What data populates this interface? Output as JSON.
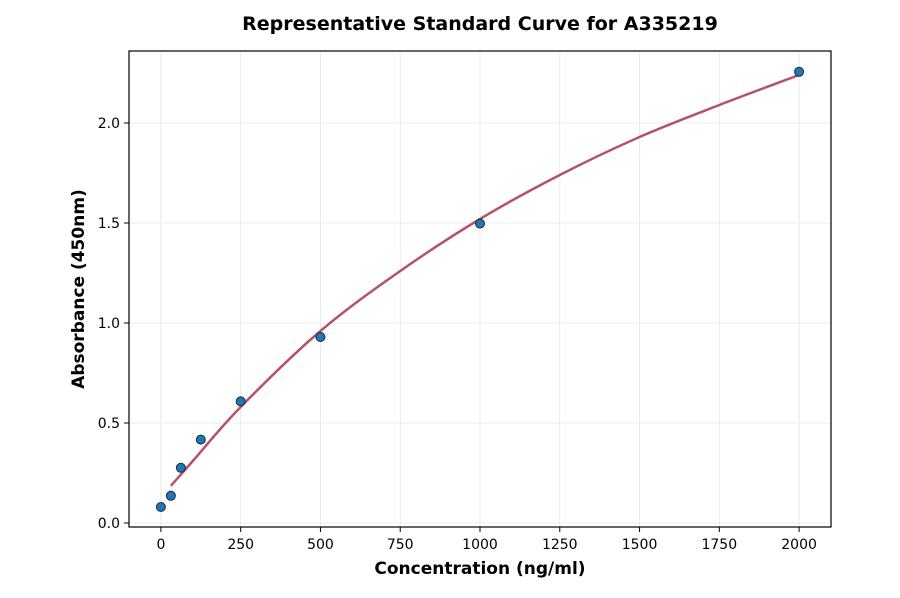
{
  "chart_data": {
    "type": "scatter",
    "title": "Representative Standard Curve for A335219",
    "xlabel": "Concentration (ng/ml)",
    "ylabel": "Absorbance (450nm)",
    "xlim": [
      -100,
      2100
    ],
    "ylim": [
      -0.02,
      2.36
    ],
    "xticks": [
      0,
      250,
      500,
      750,
      1000,
      1250,
      1500,
      1750,
      2000
    ],
    "yticks": [
      0.0,
      0.5,
      1.0,
      1.5,
      2.0
    ],
    "ytick_labels": [
      "0.0",
      "0.5",
      "1.0",
      "1.5",
      "2.0"
    ],
    "grid": true,
    "series": [
      {
        "type": "scatter",
        "x": [
          0,
          31.25,
          62.5,
          125,
          250,
          500,
          1000,
          2000
        ],
        "y": [
          0.08,
          0.136,
          0.276,
          0.417,
          0.608,
          0.93,
          1.497,
          2.256
        ],
        "color": "#1f77b4"
      },
      {
        "type": "line",
        "x": [
          31.25,
          100,
          250,
          500,
          750,
          1000,
          1250,
          1500,
          1750,
          2000
        ],
        "y": [
          0.186,
          0.31,
          0.58,
          0.96,
          1.26,
          1.52,
          1.74,
          1.93,
          2.09,
          2.24
        ],
        "color": "#b5526a"
      }
    ]
  }
}
